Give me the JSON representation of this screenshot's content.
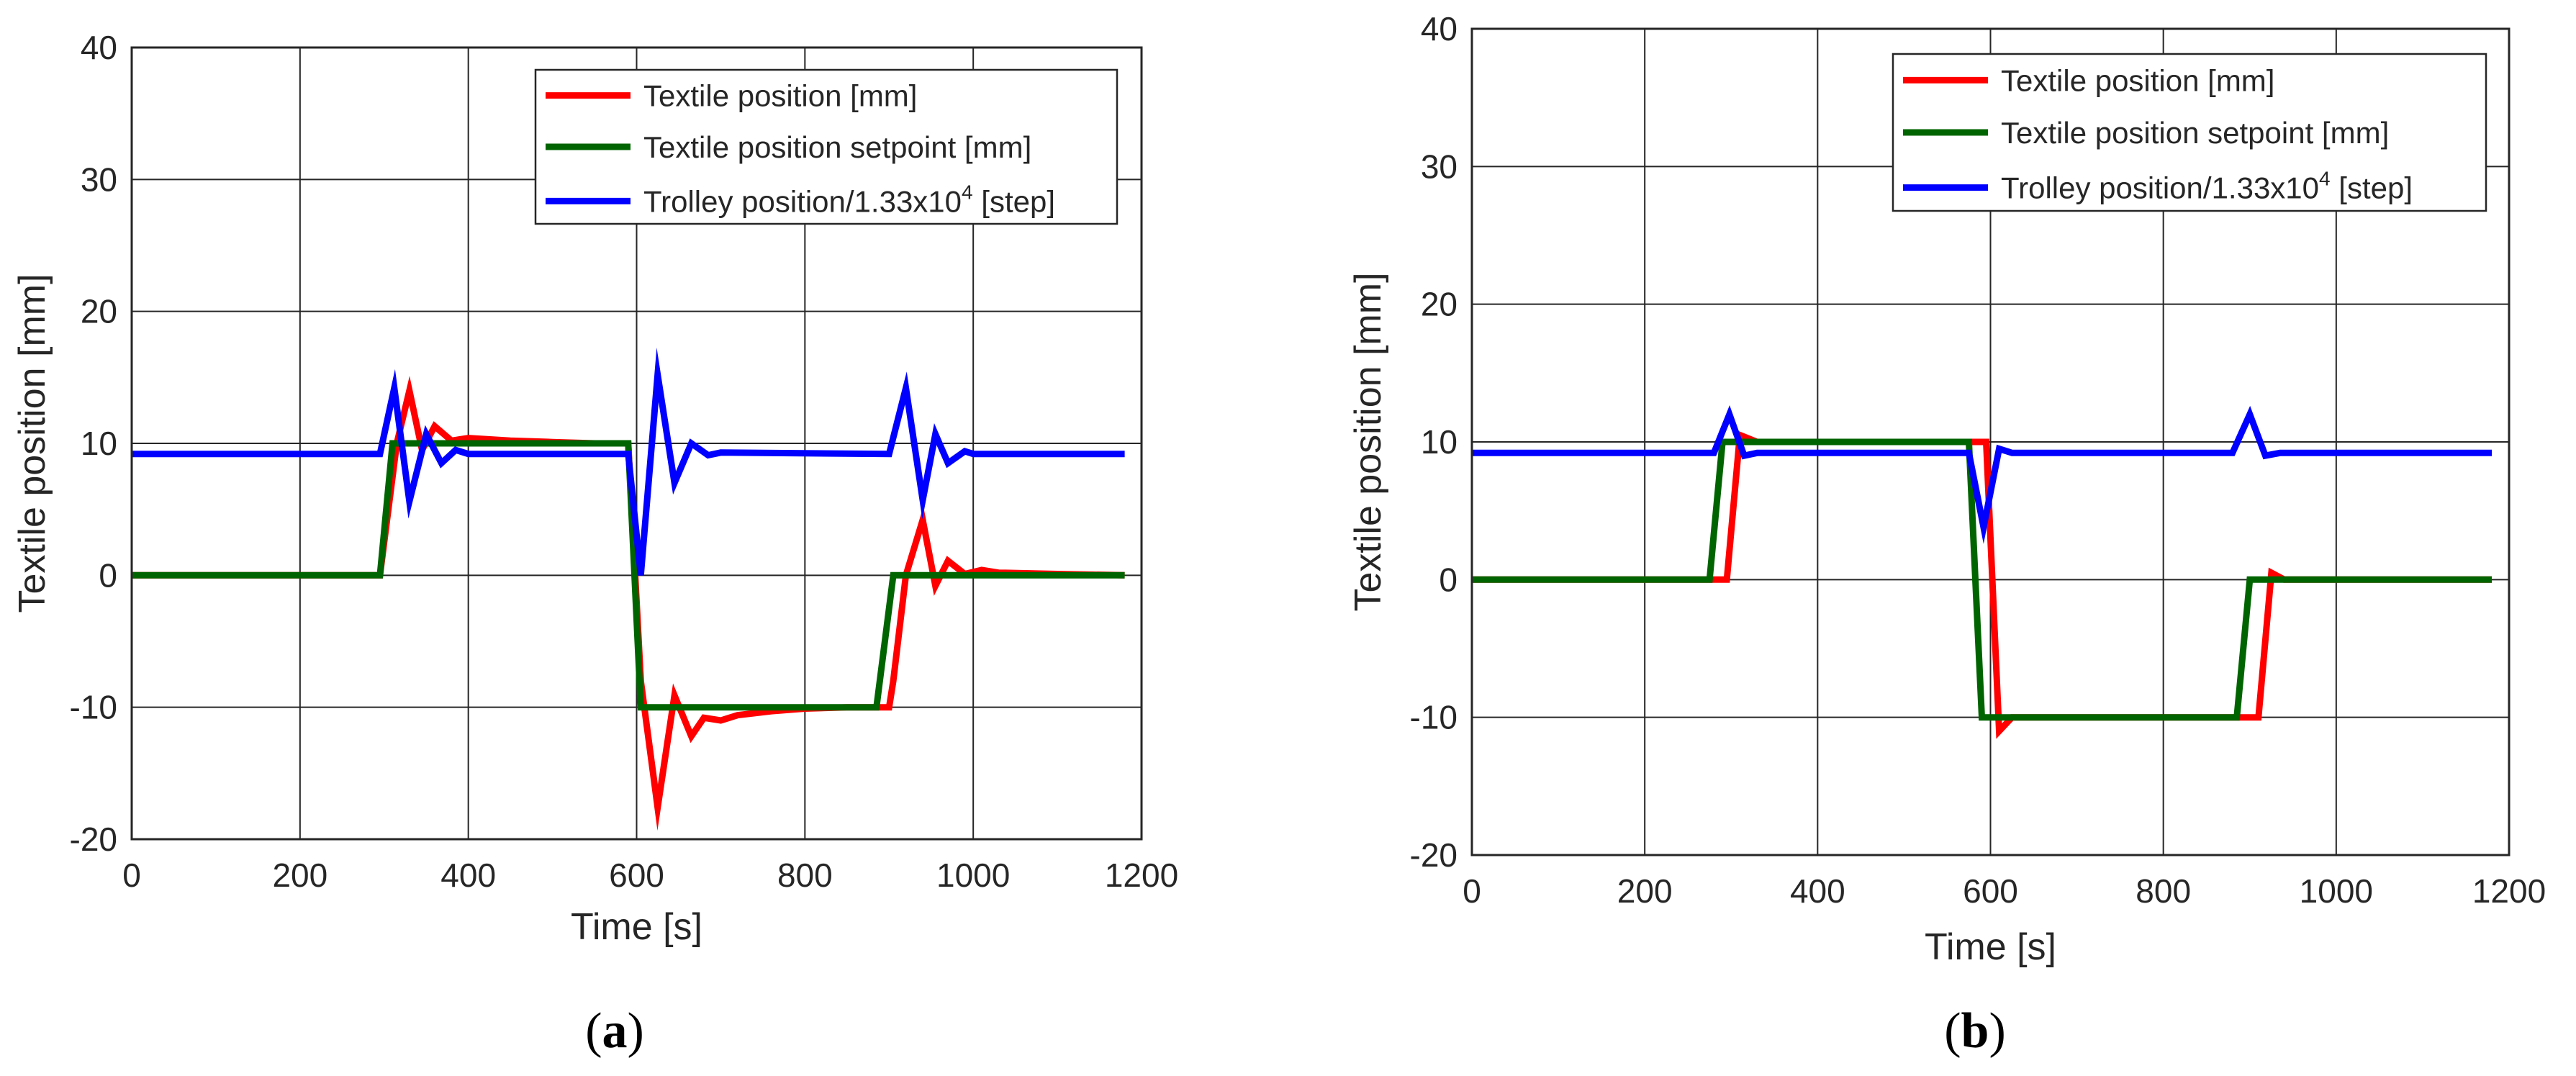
{
  "colors": {
    "textile": "#ff0000",
    "setpoint": "#006400",
    "trolley": "#0000ff",
    "grid": "#262626",
    "axes": "#262626"
  },
  "chart_data": [
    {
      "type": "line",
      "panel_label": "a",
      "xlabel": "Time [s]",
      "ylabel": "Textile position [mm]",
      "xlim": [
        0,
        1200
      ],
      "ylim": [
        -20,
        40
      ],
      "xticks": [
        0,
        200,
        400,
        600,
        800,
        1000,
        1200
      ],
      "yticks": [
        -20,
        -10,
        0,
        10,
        20,
        30,
        40
      ],
      "grid": true,
      "legend_position": "top-right",
      "series": [
        {
          "name": "Textile position [mm]",
          "color_key": "textile",
          "x": [
            0,
            295,
            315,
            330,
            345,
            360,
            380,
            400,
            450,
            500,
            550,
            590,
            605,
            625,
            645,
            665,
            680,
            700,
            720,
            760,
            800,
            850,
            900,
            905,
            920,
            940,
            955,
            970,
            990,
            1010,
            1030,
            1100,
            1180
          ],
          "y": [
            0,
            0,
            10,
            14,
            9.5,
            11.3,
            10.2,
            10.4,
            10.2,
            10.1,
            10,
            10,
            -8,
            -17.6,
            -9.1,
            -12.2,
            -10.8,
            -11,
            -10.6,
            -10.3,
            -10.1,
            -10,
            -10,
            -8,
            0,
            4.2,
            -0.8,
            1.1,
            0.1,
            0.4,
            0.2,
            0.1,
            0
          ]
        },
        {
          "name": "Textile position setpoint [mm]",
          "color_key": "setpoint",
          "x": [
            0,
            295,
            310,
            590,
            605,
            885,
            905,
            1180
          ],
          "y": [
            0,
            0,
            10,
            10,
            -10,
            -10,
            0,
            0
          ]
        },
        {
          "name": "Trolley position/1.33x10^4 [step]",
          "legend_parts": [
            "Trolley position/1.33x10",
            "4",
            " [step]"
          ],
          "color_key": "trolley",
          "x": [
            0,
            295,
            312,
            330,
            350,
            368,
            385,
            400,
            590,
            605,
            625,
            645,
            665,
            685,
            700,
            900,
            920,
            940,
            955,
            970,
            990,
            1000,
            1180
          ],
          "y": [
            9.2,
            9.2,
            14.2,
            5.6,
            10.7,
            8.5,
            9.5,
            9.2,
            9.2,
            0,
            15.2,
            7,
            10,
            9.1,
            9.3,
            9.2,
            14.2,
            5.7,
            10.7,
            8.5,
            9.4,
            9.2,
            9.2
          ]
        }
      ]
    },
    {
      "type": "line",
      "panel_label": "b",
      "xlabel": "Time [s]",
      "ylabel": "Textile position [mm]",
      "xlim": [
        0,
        1200
      ],
      "ylim": [
        -20,
        40
      ],
      "xticks": [
        0,
        200,
        400,
        600,
        800,
        1000,
        1200
      ],
      "yticks": [
        -20,
        -10,
        0,
        10,
        20,
        30,
        40
      ],
      "grid": true,
      "legend_position": "top-right",
      "series": [
        {
          "name": "Textile position [mm]",
          "color_key": "textile",
          "x": [
            0,
            295,
            310,
            330,
            400,
            500,
            590,
            595,
            610,
            625,
            700,
            800,
            900,
            910,
            925,
            940,
            1000,
            1180
          ],
          "y": [
            0,
            0,
            10.5,
            10,
            10,
            10,
            10,
            10,
            -11,
            -10,
            -10,
            -10,
            -10,
            -10,
            0.5,
            0,
            0,
            0
          ]
        },
        {
          "name": "Textile position setpoint [mm]",
          "color_key": "setpoint",
          "x": [
            0,
            275,
            290,
            575,
            590,
            885,
            900,
            1180
          ],
          "y": [
            0,
            0,
            10,
            10,
            -10,
            -10,
            0,
            0
          ]
        },
        {
          "name": "Trolley position/1.33x10^4 [step]",
          "legend_parts": [
            "Trolley position/1.33x10",
            "4",
            " [step]"
          ],
          "color_key": "trolley",
          "x": [
            0,
            280,
            298,
            315,
            330,
            575,
            592,
            610,
            625,
            880,
            900,
            918,
            935,
            1180
          ],
          "y": [
            9.2,
            9.2,
            12,
            9,
            9.2,
            9.2,
            3.8,
            9.5,
            9.2,
            9.2,
            12,
            9,
            9.2,
            9.2
          ]
        }
      ]
    }
  ]
}
